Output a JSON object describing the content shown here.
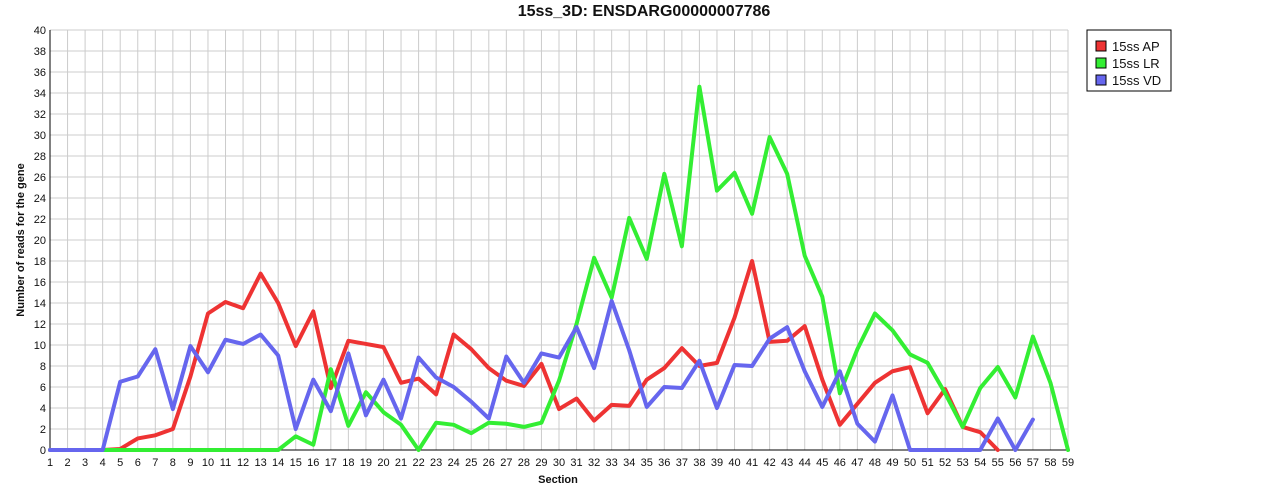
{
  "chart_data": {
    "type": "line",
    "title": "15ss_3D: ENSDARG00000007786",
    "xlabel": "Section",
    "ylabel": "Number of reads for the gene",
    "x": [
      1,
      2,
      3,
      4,
      5,
      6,
      7,
      8,
      9,
      10,
      11,
      12,
      13,
      14,
      15,
      16,
      17,
      18,
      19,
      20,
      21,
      22,
      23,
      24,
      25,
      26,
      27,
      28,
      29,
      30,
      31,
      32,
      33,
      34,
      35,
      36,
      37,
      38,
      39,
      40,
      41,
      42,
      43,
      44,
      45,
      46,
      47,
      48,
      49,
      50,
      51,
      52,
      53,
      54,
      55,
      56,
      57,
      58,
      59
    ],
    "xlim": [
      1,
      59
    ],
    "ylim": [
      0,
      40
    ],
    "yticks": [
      0,
      2,
      4,
      6,
      8,
      10,
      12,
      14,
      16,
      18,
      20,
      22,
      24,
      26,
      28,
      30,
      32,
      34,
      36,
      38,
      40
    ],
    "grid": true,
    "legend_position": "top-right",
    "series": [
      {
        "name": "15ss AP",
        "color": "#ee3333",
        "values": [
          0,
          0,
          0,
          0,
          0.1,
          1.1,
          1.4,
          2,
          7,
          13,
          14.1,
          13.5,
          16.8,
          14,
          9.9,
          13.2,
          5.9,
          10.4,
          10.1,
          9.8,
          6.4,
          6.8,
          5.3,
          11,
          9.6,
          7.8,
          6.6,
          6.1,
          8.2,
          3.9,
          4.9,
          2.8,
          4.3,
          4.2,
          6.7,
          7.8,
          9.7,
          8,
          8.3,
          12.6,
          18,
          10.3,
          10.4,
          11.8,
          6.7,
          2.4,
          4.4,
          6.4,
          7.5,
          7.9,
          3.5,
          5.8,
          2.2,
          1.7,
          0,
          null,
          null,
          null,
          null
        ]
      },
      {
        "name": "15ss LR",
        "color": "#33ee33",
        "values": [
          0,
          0,
          0,
          0,
          0,
          0,
          0,
          0,
          0,
          0,
          0,
          0,
          0,
          0,
          1.3,
          0.5,
          7.7,
          2.3,
          5.5,
          3.6,
          2.4,
          0,
          2.6,
          2.4,
          1.6,
          2.6,
          2.5,
          2.2,
          2.6,
          6.6,
          12,
          18.3,
          14.5,
          22.1,
          18.2,
          26.3,
          19.4,
          34.6,
          24.7,
          26.4,
          22.5,
          29.8,
          26.3,
          18.5,
          14.6,
          5.4,
          9.6,
          13,
          11.4,
          9.1,
          8.3,
          5.4,
          2.2,
          5.9,
          7.9,
          5,
          10.8,
          6.4,
          0
        ]
      },
      {
        "name": "15ss VD",
        "color": "#6666ee",
        "values": [
          0,
          0,
          0,
          0,
          6.5,
          7,
          9.6,
          3.9,
          9.9,
          7.4,
          10.5,
          10.1,
          11,
          9,
          2,
          6.7,
          3.7,
          9.2,
          3.3,
          6.7,
          3,
          8.8,
          6.9,
          6,
          4.6,
          3,
          8.9,
          6.4,
          9.2,
          8.8,
          11.7,
          7.8,
          14.2,
          9.5,
          4.1,
          6,
          5.9,
          8.5,
          4,
          8.1,
          8,
          10.6,
          11.7,
          7.5,
          4.1,
          7.5,
          2.5,
          0.8,
          5.2,
          0,
          0,
          0,
          0,
          0,
          3,
          0,
          2.9,
          null,
          null
        ]
      }
    ]
  }
}
